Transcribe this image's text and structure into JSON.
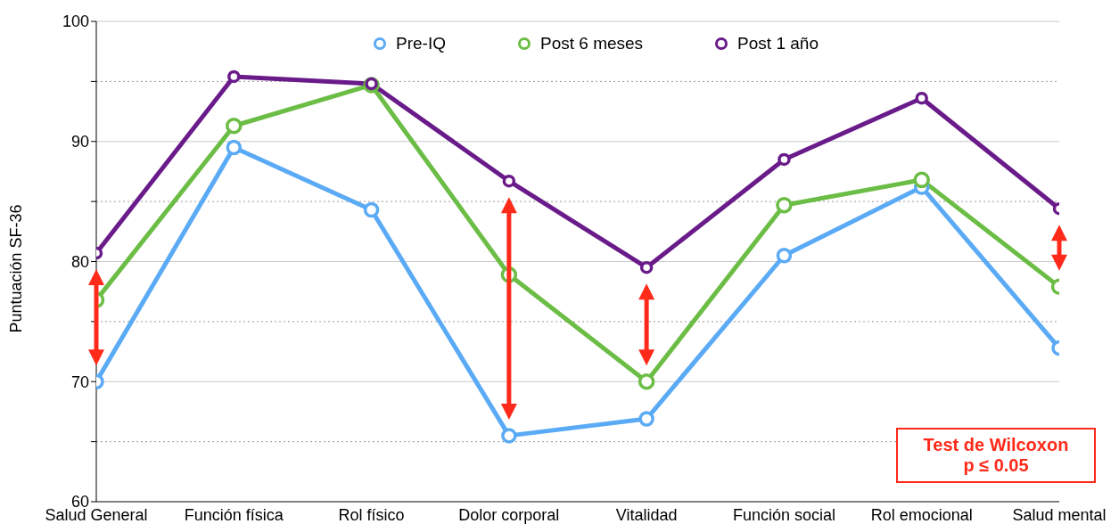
{
  "chart_data": {
    "type": "line",
    "ylabel": "Puntuación SF-36",
    "categories": [
      "Salud General",
      "Función física",
      "Rol físico",
      "Dolor corporal",
      "Vitalidad",
      "Función social",
      "Rol emocional",
      "Salud mental"
    ],
    "series": [
      {
        "name": "Pre-IQ",
        "color": "#5aaaf5",
        "values": [
          70.0,
          89.5,
          84.3,
          65.5,
          66.9,
          80.5,
          86.2,
          72.8
        ]
      },
      {
        "name": "Post 6 meses",
        "color": "#6cbd45",
        "values": [
          76.8,
          91.3,
          94.7,
          78.9,
          70.0,
          84.7,
          86.8,
          77.9
        ]
      },
      {
        "name": "Post 1 año",
        "color": "#6a1b8a",
        "values": [
          80.7,
          95.4,
          94.8,
          86.7,
          79.5,
          88.5,
          93.6,
          84.4
        ]
      }
    ],
    "ylim": [
      60,
      100
    ],
    "yticks": [
      60,
      {
        "value": 65,
        "label": null
      },
      70,
      {
        "value": 75,
        "label": null
      },
      80,
      {
        "value": 85,
        "label": null
      },
      90,
      {
        "value": 95,
        "label": null
      },
      100
    ],
    "grid": "y",
    "legend": "top",
    "marker": "circle",
    "line_style": "solid",
    "annotations": [
      "Test de Wilcoxon\np ≤ 0.05"
    ]
  }
}
